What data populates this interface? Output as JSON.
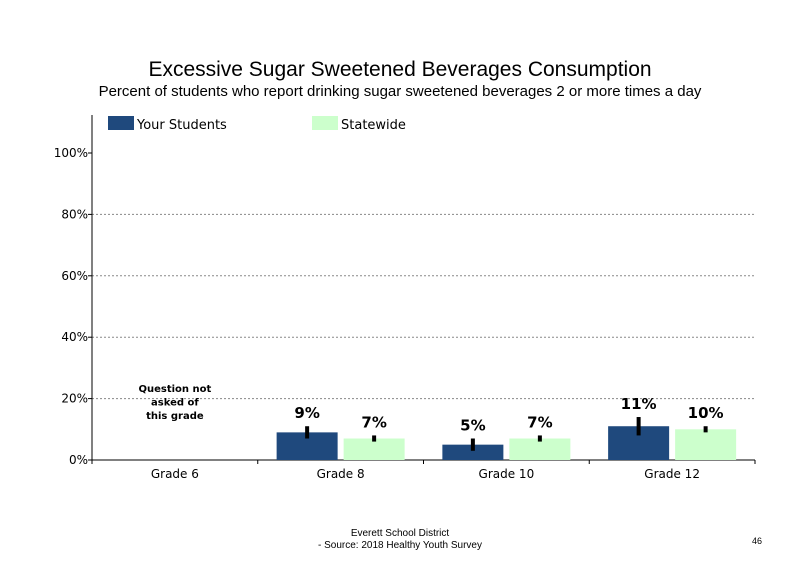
{
  "chart_data": {
    "type": "bar",
    "title": "Excessive Sugar Sweetened Beverages Consumption",
    "subtitle": "Percent of students  who report drinking sugar sweetened  beverages  2 or more times a day",
    "categories": [
      "Grade 6",
      "Grade 8",
      "Grade 10",
      "Grade 12"
    ],
    "series": [
      {
        "name": "Your Students",
        "color": "#1f497d",
        "values": [
          null,
          9,
          5,
          11
        ],
        "labels": [
          "",
          "9%",
          "5%",
          "11%"
        ],
        "error_low": [
          null,
          7,
          3,
          8
        ],
        "error_high": [
          null,
          11,
          7,
          14
        ]
      },
      {
        "name": "Statewide",
        "color": "#ccffcc",
        "values": [
          null,
          7,
          7,
          10
        ],
        "labels": [
          "",
          "7%",
          "7%",
          "10%"
        ],
        "error_low": [
          null,
          6,
          6,
          9
        ],
        "error_high": [
          null,
          8,
          8,
          11
        ]
      }
    ],
    "ylim": [
      0,
      100
    ],
    "yticks": [
      "0%",
      "20%",
      "40%",
      "60%",
      "80%",
      "100%"
    ],
    "xlabel": "",
    "ylabel": "",
    "grid": true,
    "legend": "top-left",
    "annotation": [
      "Question not",
      "asked of",
      "this grade"
    ]
  },
  "footer": {
    "line1": "Everett School District",
    "line2": "- Source: 2018 Healthy  Youth Survey"
  },
  "page_number": "46"
}
